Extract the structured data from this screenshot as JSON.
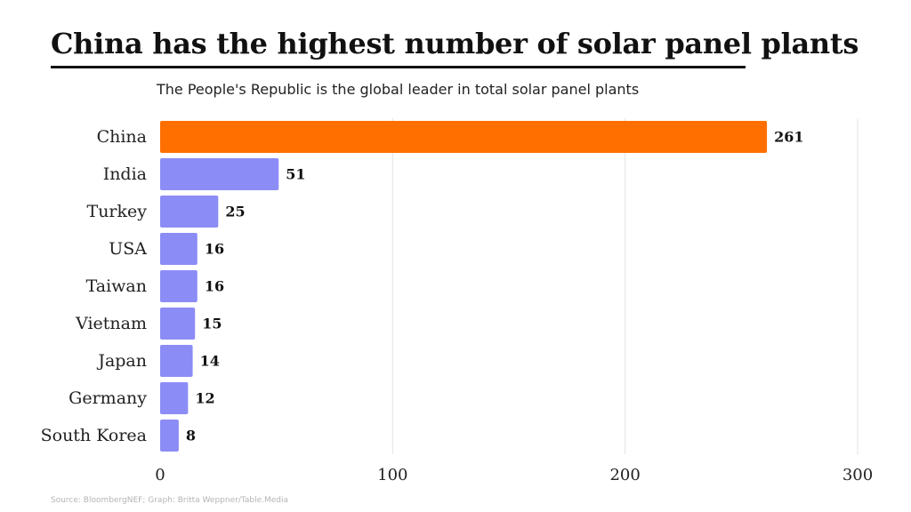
{
  "header": {
    "title": "China has the highest number of solar panel plants",
    "subtitle": "The People's Republic is the global leader in total solar panel plants"
  },
  "footer": {
    "source": "Source: BloombergNEF; Graph: Britta Weppner/Table.Media"
  },
  "colors": {
    "highlight": "#ff6f00",
    "default_bar": "#8c8cf7",
    "grid": "#e3e3e3",
    "title_rule": "#111111"
  },
  "chart_data": {
    "type": "bar",
    "orientation": "horizontal",
    "title": "China has the highest number of solar panel plants",
    "subtitle": "The People's Republic is the global leader in total solar panel plants",
    "categories": [
      "China",
      "India",
      "Turkey",
      "USA",
      "Taiwan",
      "Vietnam",
      "Japan",
      "Germany",
      "South Korea"
    ],
    "values": [
      261,
      51,
      25,
      16,
      16,
      15,
      14,
      12,
      8
    ],
    "highlight_category": "China",
    "xlim": [
      0,
      300
    ],
    "xticks": [
      0,
      100,
      200,
      300
    ],
    "xtick_labels": [
      "0",
      "100",
      "200",
      "300"
    ],
    "xlabel": "",
    "ylabel": "",
    "grid": "vertical",
    "legend": "none",
    "data_labels": true
  }
}
